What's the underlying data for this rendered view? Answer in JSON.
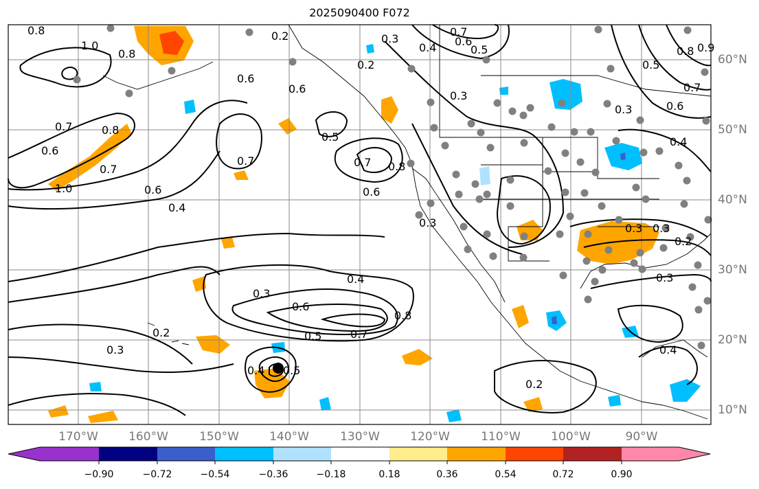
{
  "title": "2025090400 F072",
  "longitude_labels": [
    "170°W",
    "160°W",
    "150°W",
    "140°W",
    "130°W",
    "120°W",
    "110°W",
    "100°W",
    "90°W"
  ],
  "latitude_labels": [
    "60°N",
    "50°N",
    "40°N",
    "30°N",
    "20°N",
    "10°N"
  ],
  "colorbar": {
    "ticks": [
      "−0.90",
      "−0.72",
      "−0.54",
      "−0.36",
      "−0.18",
      "0.18",
      "0.36",
      "0.54",
      "0.72",
      "0.90"
    ],
    "colors": [
      "#9932cc",
      "#000080",
      "#3a5fcd",
      "#00bfff",
      "#b0e2ff",
      "#ffffff",
      "#ffec8b",
      "#ffa500",
      "#ff4500",
      "#b22222",
      "#ff88aa"
    ]
  },
  "colors": {
    "land_outline": "#000000",
    "grid": "#888888",
    "station_dot": "#808080",
    "positive_fill": "#ffa500",
    "strong_positive_fill": "#ff4500",
    "negative_fill": "#00bfff",
    "weak_negative_fill": "#b0e2ff",
    "contour": "#000000"
  },
  "contour_labels": [
    "0.8",
    "1.0",
    "0.8",
    "0.2",
    "0.3",
    "0.4",
    "0.7",
    "0.6",
    "0.5",
    "0.5",
    "0.8",
    "0.9",
    "0.2",
    "0.6",
    "0.6",
    "0.3",
    "0.7",
    "0.6",
    "0.3",
    "0.4",
    "0.7",
    "0.8",
    "0.6",
    "0.7",
    "1.0",
    "0.6",
    "0.4",
    "0.7",
    "0.5",
    "0.7",
    "0.8",
    "0.6",
    "0.3",
    "0.3",
    "0.2",
    "0.4",
    "0.3",
    "0.6",
    "0.5",
    "0.7",
    "0.8",
    "0.3",
    "0.3",
    "0.4",
    "0.5",
    "0.3",
    "0.2",
    "0.2",
    "0.4"
  ]
}
